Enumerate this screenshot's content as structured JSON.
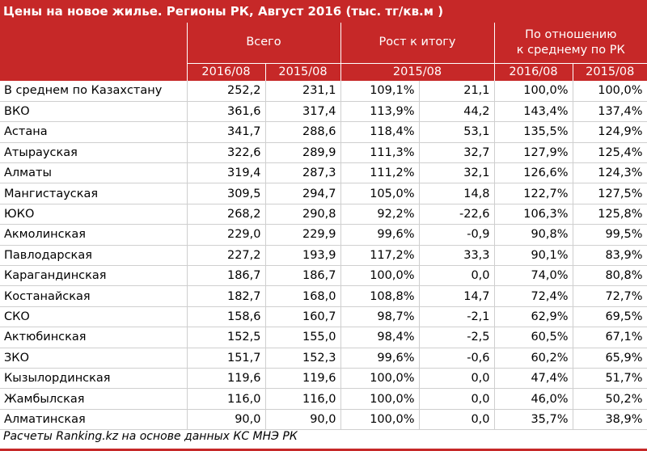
{
  "title": "Цены на новое жилье. Регионы РК, Август 2016 (тыс. тг/кв.м )",
  "headers": {
    "total": "Всего",
    "growth": "Рост к итогу",
    "ratio_line1": "По отношению",
    "ratio_line2": "к среднему по РК",
    "y2016": "2016/08",
    "y2015": "2015/08",
    "growth_period": "2015/08",
    "ratio_2016": "2016/08",
    "ratio_2015": "2015/08"
  },
  "rows": [
    {
      "region": "В среднем по Казахстану",
      "p2016": "252,2",
      "p2015": "231,1",
      "growth_pct": "109,1%",
      "growth_abs": "21,1",
      "ratio2016": "100,0%",
      "ratio2015": "100,0%"
    },
    {
      "region": "ВКО",
      "p2016": "361,6",
      "p2015": "317,4",
      "growth_pct": "113,9%",
      "growth_abs": "44,2",
      "ratio2016": "143,4%",
      "ratio2015": "137,4%"
    },
    {
      "region": "Астана",
      "p2016": "341,7",
      "p2015": "288,6",
      "growth_pct": "118,4%",
      "growth_abs": "53,1",
      "ratio2016": "135,5%",
      "ratio2015": "124,9%"
    },
    {
      "region": "Атырауская",
      "p2016": "322,6",
      "p2015": "289,9",
      "growth_pct": "111,3%",
      "growth_abs": "32,7",
      "ratio2016": "127,9%",
      "ratio2015": "125,4%"
    },
    {
      "region": "Алматы",
      "p2016": "319,4",
      "p2015": "287,3",
      "growth_pct": "111,2%",
      "growth_abs": "32,1",
      "ratio2016": "126,6%",
      "ratio2015": "124,3%"
    },
    {
      "region": "Мангистауская",
      "p2016": "309,5",
      "p2015": "294,7",
      "growth_pct": "105,0%",
      "growth_abs": "14,8",
      "ratio2016": "122,7%",
      "ratio2015": "127,5%"
    },
    {
      "region": "ЮКО",
      "p2016": "268,2",
      "p2015": "290,8",
      "growth_pct": "92,2%",
      "growth_abs": "-22,6",
      "ratio2016": "106,3%",
      "ratio2015": "125,8%"
    },
    {
      "region": "Акмолинская",
      "p2016": "229,0",
      "p2015": "229,9",
      "growth_pct": "99,6%",
      "growth_abs": "-0,9",
      "ratio2016": "90,8%",
      "ratio2015": "99,5%"
    },
    {
      "region": "Павлодарская",
      "p2016": "227,2",
      "p2015": "193,9",
      "growth_pct": "117,2%",
      "growth_abs": "33,3",
      "ratio2016": "90,1%",
      "ratio2015": "83,9%"
    },
    {
      "region": "Карагандинская",
      "p2016": "186,7",
      "p2015": "186,7",
      "growth_pct": "100,0%",
      "growth_abs": "0,0",
      "ratio2016": "74,0%",
      "ratio2015": "80,8%"
    },
    {
      "region": "Костанайская",
      "p2016": "182,7",
      "p2015": "168,0",
      "growth_pct": "108,8%",
      "growth_abs": "14,7",
      "ratio2016": "72,4%",
      "ratio2015": "72,7%"
    },
    {
      "region": "СКО",
      "p2016": "158,6",
      "p2015": "160,7",
      "growth_pct": "98,7%",
      "growth_abs": "-2,1",
      "ratio2016": "62,9%",
      "ratio2015": "69,5%"
    },
    {
      "region": "Актюбинская",
      "p2016": "152,5",
      "p2015": "155,0",
      "growth_pct": "98,4%",
      "growth_abs": "-2,5",
      "ratio2016": "60,5%",
      "ratio2015": "67,1%"
    },
    {
      "region": "ЗКО",
      "p2016": "151,7",
      "p2015": "152,3",
      "growth_pct": "99,6%",
      "growth_abs": "-0,6",
      "ratio2016": "60,2%",
      "ratio2015": "65,9%"
    },
    {
      "region": "Кызылординская",
      "p2016": "119,6",
      "p2015": "119,6",
      "growth_pct": "100,0%",
      "growth_abs": "0,0",
      "ratio2016": "47,4%",
      "ratio2015": "51,7%"
    },
    {
      "region": "Жамбылская",
      "p2016": "116,0",
      "p2015": "116,0",
      "growth_pct": "100,0%",
      "growth_abs": "0,0",
      "ratio2016": "46,0%",
      "ratio2015": "50,2%"
    },
    {
      "region": "Алматинская",
      "p2016": "90,0",
      "p2015": "90,0",
      "growth_pct": "100,0%",
      "growth_abs": "0,0",
      "ratio2016": "35,7%",
      "ratio2015": "38,9%"
    }
  ],
  "footer": "Расчеты Ranking.kz на основе данных КС МНЭ РК",
  "colors": {
    "header_bg": "#c62828",
    "header_text": "#ffffff",
    "grid": "#cfcfcf"
  }
}
